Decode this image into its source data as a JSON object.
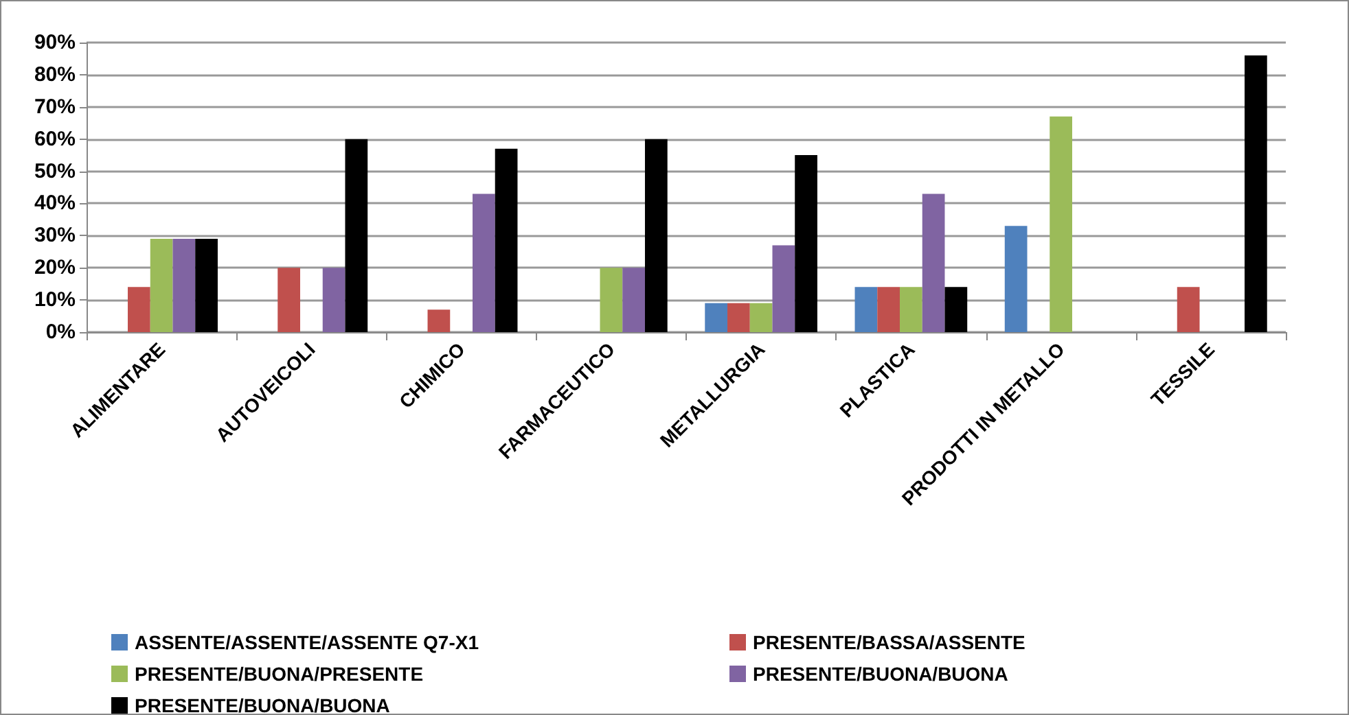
{
  "chart_data": {
    "type": "bar",
    "categories": [
      "ALIMENTARE",
      "AUTOVEICOLI",
      "CHIMICO",
      "FARMACEUTICO",
      "METALLURGIA",
      "PLASTICA",
      "PRODOTTI IN METALLO",
      "TESSILE"
    ],
    "series": [
      {
        "name": "ASSENTE/ASSENTE/ASSENTE Q7-X1",
        "color": "#4f81bd",
        "values": [
          null,
          null,
          null,
          null,
          9,
          14,
          33,
          null
        ]
      },
      {
        "name": "PRESENTE/BASSA/ASSENTE",
        "color": "#c0504d",
        "values": [
          14,
          20,
          7,
          null,
          9,
          14,
          null,
          14
        ]
      },
      {
        "name": "PRESENTE/BUONA/PRESENTE",
        "color": "#9bbb59",
        "values": [
          29,
          null,
          null,
          20,
          9,
          14,
          67,
          null
        ]
      },
      {
        "name": "PRESENTE/BUONA/BUONA",
        "color": "#8064a2",
        "values": [
          29,
          20,
          43,
          20,
          27,
          43,
          null,
          null
        ]
      },
      {
        "name": "PRESENTE/BUONA/BUONA",
        "color": "#000000",
        "values": [
          29,
          60,
          57,
          60,
          55,
          14,
          null,
          86
        ]
      }
    ],
    "ylim": [
      0,
      90
    ],
    "yticks": [
      {
        "value": 0,
        "label": "0%"
      },
      {
        "value": 10,
        "label": "10%"
      },
      {
        "value": 20,
        "label": "20%"
      },
      {
        "value": 30,
        "label": "30%"
      },
      {
        "value": 40,
        "label": "40%"
      },
      {
        "value": 50,
        "label": "50%"
      },
      {
        "value": 60,
        "label": "60%"
      },
      {
        "value": 70,
        "label": "70%"
      },
      {
        "value": 80,
        "label": "80%"
      },
      {
        "value": 90,
        "label": "90%"
      }
    ],
    "grid": "y",
    "legend": "bottom"
  }
}
